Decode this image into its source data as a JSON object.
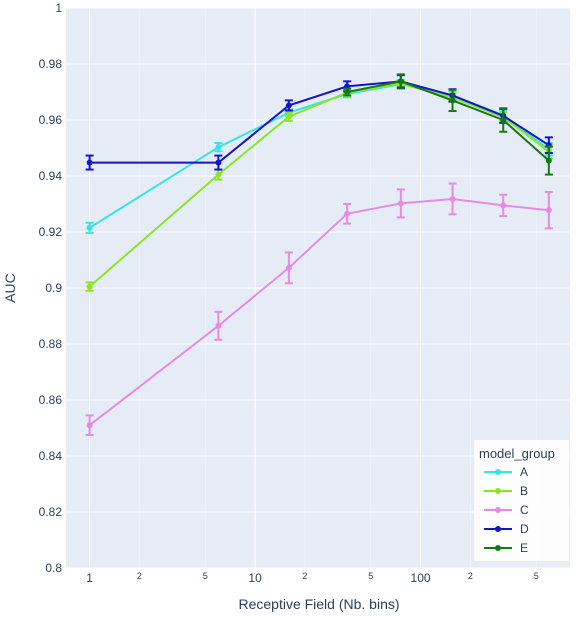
{
  "chart_data": {
    "type": "line",
    "xlabel": "Receptive Field (Nb. bins)",
    "ylabel": "AUC",
    "x_scale": "log",
    "x_range": [
      0.72,
      800
    ],
    "ylim": [
      0.8,
      1.0
    ],
    "y_ticks": [
      0.8,
      0.82,
      0.84,
      0.86,
      0.88,
      0.9,
      0.92,
      0.94,
      0.96,
      0.98,
      1
    ],
    "y_tick_labels": [
      "0.8",
      "0.82",
      "0.84",
      "0.86",
      "0.88",
      "0.9",
      "0.92",
      "0.94",
      "0.96",
      "0.98",
      "1"
    ],
    "x_major_ticks": [
      1,
      10,
      100
    ],
    "x_major_labels": [
      "1",
      "10",
      "100"
    ],
    "x_minor_ticks": [
      2,
      5,
      20,
      50,
      200,
      500
    ],
    "x_minor_labels": [
      "2",
      "5",
      "2",
      "5",
      "2",
      "5"
    ],
    "grid": true,
    "legend": {
      "title": "model_group",
      "placement": "bottom-right"
    },
    "x": [
      1,
      6,
      16,
      36,
      76,
      156,
      316,
      596
    ],
    "series": [
      {
        "name": "A",
        "color": "#33e6e6",
        "values": [
          0.9215,
          0.9503,
          0.9626,
          0.9693,
          0.9728,
          0.9688,
          0.9618,
          0.9495
        ],
        "errors": [
          0.0018,
          0.0015,
          0.0012,
          0.0012,
          0.0015,
          0.0015,
          0.0018,
          0.0022
        ]
      },
      {
        "name": "B",
        "color": "#88e624",
        "values": [
          0.9005,
          0.9405,
          0.9612,
          0.9698,
          0.973,
          0.968,
          0.961,
          0.9488
        ],
        "errors": [
          0.0015,
          0.0018,
          0.0015,
          0.0012,
          0.0012,
          0.0015,
          0.0018,
          0.0025
        ]
      },
      {
        "name": "C",
        "color": "#e68ae6",
        "values": [
          0.851,
          0.8865,
          0.9072,
          0.9265,
          0.9302,
          0.9318,
          0.9295,
          0.9278
        ],
        "errors": [
          0.0035,
          0.005,
          0.0055,
          0.0035,
          0.005,
          0.0055,
          0.0038,
          0.0065
        ]
      },
      {
        "name": "D",
        "color": "#1414cc",
        "values": [
          0.9448,
          0.9448,
          0.9652,
          0.972,
          0.9738,
          0.9688,
          0.9615,
          0.951
        ],
        "errors": [
          0.0025,
          0.0025,
          0.0018,
          0.0018,
          0.0022,
          0.0022,
          0.0025,
          0.0028
        ]
      },
      {
        "name": "E",
        "color": "#147a14",
        "values": [
          null,
          null,
          null,
          0.97,
          0.9738,
          0.967,
          0.96,
          0.9455
        ],
        "errors": [
          0,
          0,
          0,
          0.0012,
          0.0025,
          0.0038,
          0.0042,
          0.005
        ]
      }
    ]
  }
}
